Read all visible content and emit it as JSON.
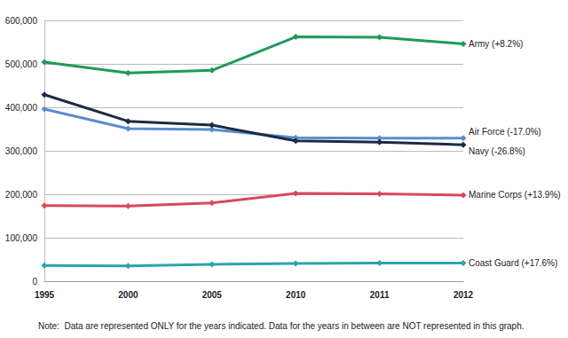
{
  "chart_data": {
    "type": "line",
    "categories": [
      "1995",
      "2000",
      "2005",
      "2010",
      "2011",
      "2012"
    ],
    "series": [
      {
        "name": "Army (+8.2%)",
        "color": "#1e9a5a",
        "values": [
          504000,
          479000,
          485000,
          562000,
          561000,
          546000
        ]
      },
      {
        "name": "Air Force (-17.0%)",
        "color": "#5d8ccc",
        "values": [
          396000,
          351000,
          349000,
          330000,
          329000,
          329000
        ]
      },
      {
        "name": "Navy (-26.8%)",
        "color": "#1c2a48",
        "values": [
          429000,
          368000,
          359000,
          323000,
          320000,
          314000
        ]
      },
      {
        "name": "Marine Corps (+13.9%)",
        "color": "#d9485c",
        "values": [
          174000,
          173000,
          180000,
          202000,
          201000,
          198000
        ]
      },
      {
        "name": "Coast Guard (+17.6%)",
        "color": "#2ca5a9",
        "values": [
          36000,
          35000,
          39000,
          41000,
          42000,
          42000
        ]
      }
    ],
    "ylim": [
      0,
      600000
    ],
    "yticks": [
      0,
      {
        "value": 100000,
        "label": "100,000"
      },
      {
        "value": 200000,
        "label": "200,000"
      },
      {
        "value": 300000,
        "label": "300,000"
      },
      {
        "value": 400000,
        "label": "400,000"
      },
      {
        "value": 500000,
        "label": "500,000"
      },
      {
        "value": 600000,
        "label": "600,000"
      }
    ],
    "grid": true,
    "marker": "diamond",
    "note": "Note:  Data are represented ONLY for the years indicated. Data for the years in between are NOT represented in this graph."
  }
}
